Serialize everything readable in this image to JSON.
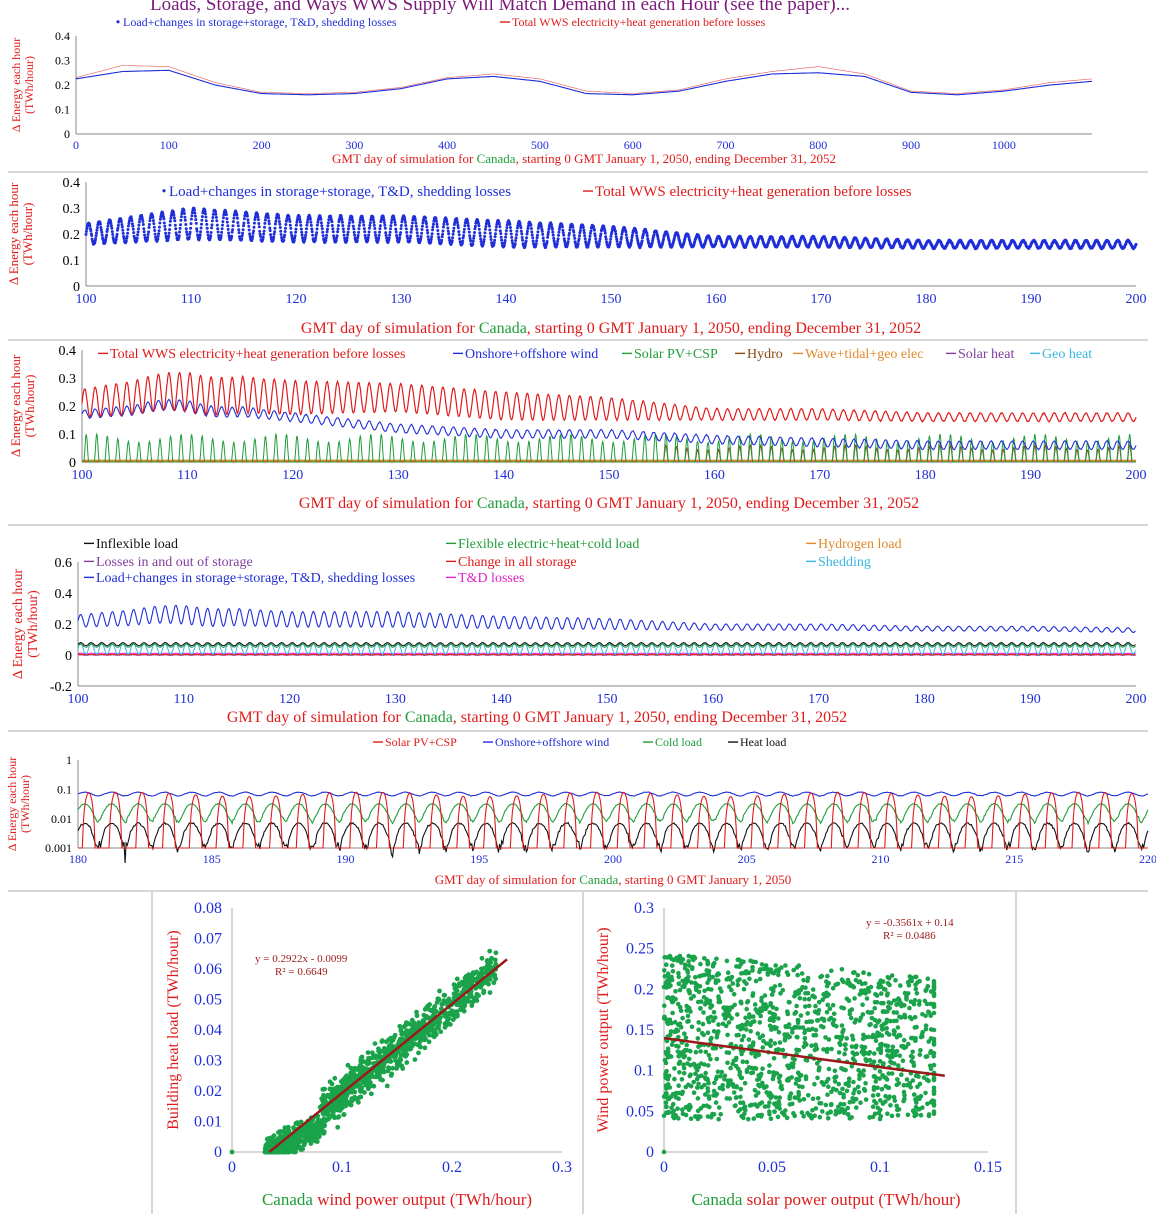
{
  "header": {
    "caption_fragment": "Loads, Storage, and Ways WWS Supply Will Match Demand in each Hour (see the paper)..."
  },
  "colors": {
    "blue": "#1f2fd9",
    "red": "#e01b1b",
    "green": "#1f9d3a",
    "brown": "#8a4a16",
    "orange": "#e08a2a",
    "purple": "#8040a0",
    "cyan": "#36b6e0",
    "black": "#111111",
    "magenta": "#e020c8",
    "dark_red": "#9a1a1a",
    "scatter_green": "#1aa34a"
  },
  "chart_data": [
    {
      "type": "line",
      "ylabel": "Δ Energy each hour (TWh/hour)",
      "xlabel_parts": [
        "GMT day of simulation for ",
        "Canada",
        ", starting 0 GMT January 1, 2050, ending December 31, 2052"
      ],
      "xlim": [
        0,
        1095
      ],
      "ylim": [
        0,
        0.4
      ],
      "xticks": [
        0,
        100,
        200,
        300,
        400,
        500,
        600,
        700,
        800,
        900,
        1000
      ],
      "yticks": [
        0,
        0.1,
        0.2,
        0.3,
        0.4
      ],
      "legend": [
        {
          "name": "Load+changes in storage+storage, T&D, shedding losses",
          "color": "#1f2fd9",
          "marker": "dot"
        },
        {
          "name": "Total WWS electricity+heat generation before losses",
          "color": "#e01b1b",
          "marker": "line"
        }
      ],
      "series": [
        {
          "name": "Load+changes in storage+storage, T&D, shedding losses",
          "color": "#1f2fd9",
          "envelope_x": [
            0,
            50,
            100,
            150,
            200,
            250,
            300,
            350,
            400,
            450,
            500,
            550,
            600,
            650,
            700,
            750,
            800,
            850,
            900,
            950,
            1000,
            1050,
            1095
          ],
          "envelope_low": [
            0.18,
            0.18,
            0.19,
            0.16,
            0.14,
            0.14,
            0.14,
            0.15,
            0.17,
            0.17,
            0.16,
            0.14,
            0.14,
            0.15,
            0.17,
            0.18,
            0.18,
            0.17,
            0.14,
            0.14,
            0.15,
            0.16,
            0.17
          ],
          "envelope_high": [
            0.27,
            0.33,
            0.33,
            0.24,
            0.19,
            0.18,
            0.19,
            0.22,
            0.28,
            0.3,
            0.27,
            0.19,
            0.18,
            0.2,
            0.26,
            0.31,
            0.32,
            0.3,
            0.2,
            0.18,
            0.2,
            0.24,
            0.26
          ]
        },
        {
          "name": "Total WWS electricity+heat generation before losses",
          "color": "#e01b1b",
          "envelope_x": [
            0,
            50,
            100,
            150,
            200,
            250,
            300,
            350,
            400,
            450,
            500,
            550,
            600,
            650,
            700,
            750,
            800,
            850,
            900,
            950,
            1000,
            1050,
            1095
          ],
          "envelope_low": [
            0.19,
            0.2,
            0.2,
            0.17,
            0.15,
            0.15,
            0.15,
            0.16,
            0.18,
            0.18,
            0.17,
            0.15,
            0.15,
            0.16,
            0.18,
            0.19,
            0.19,
            0.18,
            0.15,
            0.15,
            0.16,
            0.17,
            0.18
          ],
          "envelope_high": [
            0.27,
            0.36,
            0.35,
            0.25,
            0.19,
            0.18,
            0.19,
            0.22,
            0.28,
            0.31,
            0.28,
            0.2,
            0.18,
            0.2,
            0.27,
            0.32,
            0.36,
            0.31,
            0.2,
            0.18,
            0.2,
            0.25,
            0.27
          ]
        }
      ]
    },
    {
      "type": "scatter",
      "ylabel": "Δ Energy each hour (TWh/hour)",
      "xlabel_parts": [
        "GMT day of simulation for ",
        "Canada",
        ", starting 0 GMT January 1, 2050, ending December 31, 2052"
      ],
      "xlim": [
        100,
        200
      ],
      "ylim": [
        0,
        0.4
      ],
      "xticks": [
        100,
        110,
        120,
        130,
        140,
        150,
        160,
        170,
        180,
        190,
        200
      ],
      "yticks": [
        0,
        0.1,
        0.2,
        0.3,
        0.4
      ],
      "legend": [
        {
          "name": "Load+changes in storage+storage, T&D, shedding losses",
          "color": "#1f2fd9",
          "marker": "dot"
        },
        {
          "name": "Total WWS electricity+heat generation before losses",
          "color": "#e01b1b",
          "marker": "line"
        }
      ],
      "series": [
        {
          "name": "Load+changes in storage+storage, T&D, shedding losses",
          "color": "#1f2fd9",
          "daily_mean": {
            "x": [
              100,
              110,
              120,
              130,
              140,
              150,
              160,
              170,
              180,
              190,
              200
            ],
            "y": [
              0.2,
              0.24,
              0.22,
              0.22,
              0.2,
              0.19,
              0.17,
              0.17,
              0.16,
              0.16,
              0.16
            ]
          },
          "daily_amplitude": {
            "x": [
              100,
              110,
              120,
              130,
              140,
              150,
              160,
              170,
              180,
              190,
              200
            ],
            "y": [
              0.04,
              0.06,
              0.05,
              0.05,
              0.05,
              0.04,
              0.02,
              0.02,
              0.015,
              0.015,
              0.015
            ]
          }
        }
      ]
    },
    {
      "type": "line",
      "ylabel": "Δ Energy each hour (TWh/hour)",
      "xlabel_parts": [
        "GMT day of simulation for ",
        "Canada",
        ", starting 0 GMT January 1, 2050, ending December 31, 2052"
      ],
      "xlim": [
        100,
        200
      ],
      "ylim": [
        0,
        0.4
      ],
      "xticks": [
        100,
        110,
        120,
        130,
        140,
        150,
        160,
        170,
        180,
        190,
        200
      ],
      "yticks": [
        0,
        0.1,
        0.2,
        0.3,
        0.4
      ],
      "legend": [
        {
          "name": "Total WWS electricity+heat generation before losses",
          "color": "#e01b1b"
        },
        {
          "name": "Onshore+offshore wind",
          "color": "#1f2fd9"
        },
        {
          "name": "Solar PV+CSP",
          "color": "#1f9d3a"
        },
        {
          "name": "Hydro",
          "color": "#8a4a16"
        },
        {
          "name": "Wave+tidal+geo elec",
          "color": "#e08a2a"
        },
        {
          "name": "Solar heat",
          "color": "#8040a0"
        },
        {
          "name": "Geo heat",
          "color": "#36b6e0"
        }
      ],
      "series": [
        {
          "name": "Total WWS electricity+heat generation before losses",
          "color": "#e01b1b",
          "daily_mean": {
            "x": [
              100,
              110,
              120,
              130,
              140,
              150,
              160,
              170,
              180,
              190,
              200
            ],
            "y": [
              0.21,
              0.25,
              0.23,
              0.23,
              0.2,
              0.19,
              0.17,
              0.17,
              0.16,
              0.16,
              0.16
            ]
          },
          "daily_amplitude": {
            "x": [
              100,
              110,
              120,
              130,
              140,
              150,
              160,
              170,
              180,
              190,
              200
            ],
            "y": [
              0.05,
              0.07,
              0.06,
              0.05,
              0.05,
              0.04,
              0.02,
              0.02,
              0.015,
              0.015,
              0.015
            ]
          }
        },
        {
          "name": "Onshore+offshore wind",
          "color": "#1f2fd9",
          "daily_mean": {
            "x": [
              100,
              110,
              120,
              130,
              140,
              150,
              160,
              170,
              180,
              190,
              200
            ],
            "y": [
              0.17,
              0.2,
              0.16,
              0.12,
              0.1,
              0.1,
              0.08,
              0.07,
              0.06,
              0.06,
              0.06
            ]
          },
          "daily_amplitude": {
            "x": [
              100,
              110,
              120,
              130,
              140,
              150,
              160,
              170,
              180,
              190,
              200
            ],
            "y": [
              0.015,
              0.02,
              0.015,
              0.015,
              0.015,
              0.015,
              0.015,
              0.015,
              0.015,
              0.015,
              0.015
            ]
          }
        },
        {
          "name": "Solar PV+CSP",
          "color": "#1f9d3a",
          "daily_peak": 0.1
        },
        {
          "name": "Hydro",
          "color": "#8a4a16",
          "daily_peak": 0.06,
          "starts_day": 155
        },
        {
          "name": "Wave+tidal+geo elec",
          "color": "#e08a2a",
          "constant": 0.005
        },
        {
          "name": "Solar heat",
          "color": "#8040a0",
          "constant": 0.002
        },
        {
          "name": "Geo heat",
          "color": "#36b6e0",
          "constant": 0.004
        }
      ]
    },
    {
      "type": "line",
      "ylabel": "Δ Energy each hour (TWh/hour)",
      "xlabel_parts": [
        "GMT day of simulation for ",
        "Canada",
        ", starting 0 GMT January 1, 2050, ending December 31, 2052"
      ],
      "xlim": [
        100,
        200
      ],
      "ylim": [
        -0.2,
        0.6
      ],
      "xticks": [
        100,
        110,
        120,
        130,
        140,
        150,
        160,
        170,
        180,
        190,
        200
      ],
      "yticks": [
        -0.2,
        0,
        0.2,
        0.4,
        0.6
      ],
      "legend": [
        {
          "name": "Inflexible load",
          "color": "#111111"
        },
        {
          "name": "Flexible electric+heat+cold load",
          "color": "#1f9d3a"
        },
        {
          "name": "Hydrogen load",
          "color": "#e08a2a"
        },
        {
          "name": "Losses in and out of storage",
          "color": "#8040a0"
        },
        {
          "name": "Change in all storage",
          "color": "#e01b1b"
        },
        {
          "name": "Shedding",
          "color": "#36b6e0"
        },
        {
          "name": "Load+changes in storage+storage, T&D, shedding losses",
          "color": "#1f2fd9"
        },
        {
          "name": "T&D losses",
          "color": "#e020c8"
        }
      ],
      "series": [
        {
          "name": "Load+changes in storage+storage, T&D, shedding losses",
          "color": "#1f2fd9",
          "daily_mean": {
            "x": [
              100,
              110,
              120,
              130,
              140,
              150,
              160,
              170,
              180,
              190,
              200
            ],
            "y": [
              0.22,
              0.26,
              0.23,
              0.23,
              0.21,
              0.2,
              0.18,
              0.18,
              0.17,
              0.17,
              0.16
            ]
          },
          "daily_amplitude": {
            "x": [
              100,
              110,
              120,
              130,
              140,
              150,
              160,
              170,
              180,
              190,
              200
            ],
            "y": [
              0.04,
              0.06,
              0.05,
              0.05,
              0.04,
              0.035,
              0.02,
              0.02,
              0.015,
              0.015,
              0.015
            ]
          }
        },
        {
          "name": "Inflexible load",
          "color": "#111111",
          "mean": 0.07,
          "amplitude": 0.01
        },
        {
          "name": "Flexible electric+heat+cold load",
          "color": "#1f9d3a",
          "mean": 0.06,
          "amplitude": 0.01
        },
        {
          "name": "Shedding",
          "color": "#36b6e0",
          "mean": 0.04,
          "amplitude": 0.035
        },
        {
          "name": "T&D losses",
          "color": "#e020c8",
          "mean": 0.01,
          "amplitude": 0.002
        },
        {
          "name": "Change in all storage",
          "color": "#e01b1b",
          "mean": 0.002,
          "amplitude": 0.001
        },
        {
          "name": "Losses in and out of storage",
          "color": "#8040a0",
          "mean": 0.0,
          "amplitude": 0.002
        },
        {
          "name": "Hydrogen load",
          "color": "#e08a2a",
          "mean": 0.003,
          "amplitude": 0.0
        }
      ]
    },
    {
      "type": "line",
      "ylabel": "Δ Energy each hour (TWh/hour)",
      "yscale": "log",
      "xlabel_parts": [
        "GMT day of simulation for ",
        "Canada",
        ", starting 0 GMT January 1, 2050"
      ],
      "xlim": [
        180,
        220
      ],
      "ylim": [
        0.001,
        1
      ],
      "xticks": [
        180,
        185,
        190,
        195,
        200,
        205,
        210,
        215,
        220
      ],
      "yticks": [
        0.001,
        0.01,
        0.1,
        1
      ],
      "legend": [
        {
          "name": "Solar PV+CSP",
          "color": "#e01b1b"
        },
        {
          "name": "Onshore+offshore wind",
          "color": "#1f2fd9"
        },
        {
          "name": "Cold load",
          "color": "#1f9d3a"
        },
        {
          "name": "Heat load",
          "color": "#111111"
        }
      ],
      "series": [
        {
          "name": "Solar PV+CSP",
          "color": "#e01b1b",
          "daily_peak": 0.08,
          "night_min": 0.001
        },
        {
          "name": "Onshore+offshore wind",
          "color": "#1f2fd9",
          "mean": 0.07,
          "amplitude": 0.01
        },
        {
          "name": "Cold load",
          "color": "#1f9d3a",
          "mean": 0.02,
          "amplitude": 0.012
        },
        {
          "name": "Heat load",
          "color": "#111111",
          "mean": 0.004,
          "amplitude": 0.003
        }
      ]
    },
    {
      "type": "scatter",
      "xlabel_parts": [
        "Canada",
        " wind power output (TWh/hour)"
      ],
      "ylabel": "Building heat load (TWh/hour)",
      "xlim": [
        0,
        0.3
      ],
      "ylim": [
        0,
        0.08
      ],
      "xticks": [
        0,
        0.1,
        0.2,
        0.3
      ],
      "yticks": [
        0,
        0.01,
        0.02,
        0.03,
        0.04,
        0.05,
        0.06,
        0.07,
        0.08
      ],
      "equation": "y = 0.2922x - 0.0099",
      "r2": "R² = 0.6649",
      "trendline": {
        "slope": 0.2922,
        "intercept": -0.0099,
        "x_range": [
          0.034,
          0.25
        ]
      },
      "cloud": {
        "x_range": [
          0.03,
          0.24
        ],
        "y_noise": 0.012,
        "cluster_center": [
          0.06,
          0.008
        ]
      },
      "points_color": "#1aa34a"
    },
    {
      "type": "scatter",
      "xlabel_parts": [
        "Canada",
        " solar power output (TWh/hour)"
      ],
      "ylabel": "Wind power output (TWh/hour)",
      "xlim": [
        0,
        0.15
      ],
      "ylim": [
        0,
        0.3
      ],
      "xticks": [
        0,
        0.05,
        0.1,
        0.15
      ],
      "yticks": [
        0,
        0.05,
        0.1,
        0.15,
        0.2,
        0.25,
        0.3
      ],
      "equation": "y = -0.3561x + 0.14",
      "r2": "R² = 0.0486",
      "trendline": {
        "slope": -0.3561,
        "intercept": 0.14,
        "x_range": [
          0,
          0.13
        ]
      },
      "cloud": {
        "x_range": [
          0,
          0.125
        ],
        "y_range": [
          0.03,
          0.25
        ]
      },
      "points_color": "#1aa34a"
    }
  ]
}
